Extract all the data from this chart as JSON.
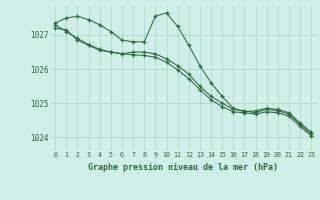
{
  "title": "Graphe pression niveau de la mer (hPa)",
  "background_color": "#cff0e8",
  "plot_bg_color": "#cff0e8",
  "grid_color": "#aad4c8",
  "line_color": "#2d6b3c",
  "xlim": [
    -0.5,
    23.5
  ],
  "ylim": [
    1023.6,
    1027.85
  ],
  "yticks": [
    1024,
    1025,
    1026,
    1027
  ],
  "xticks": [
    0,
    1,
    2,
    3,
    4,
    5,
    6,
    7,
    8,
    9,
    10,
    11,
    12,
    13,
    14,
    15,
    16,
    17,
    18,
    19,
    20,
    21,
    22,
    23
  ],
  "series1_x": [
    0,
    1,
    2,
    3,
    4,
    5,
    6,
    7,
    8,
    9,
    10,
    11,
    12,
    13,
    14,
    15,
    16,
    17,
    18,
    19,
    20,
    21,
    22,
    23
  ],
  "series1_y": [
    1027.35,
    1027.5,
    1027.55,
    1027.45,
    1027.3,
    1027.1,
    1026.85,
    1026.8,
    1026.8,
    1027.55,
    1027.65,
    1027.25,
    1026.7,
    1026.1,
    1025.6,
    1025.2,
    1024.85,
    1024.75,
    1024.78,
    1024.85,
    1024.82,
    1024.72,
    1024.42,
    1024.15
  ],
  "series2_x": [
    0,
    1,
    2,
    3,
    4,
    5,
    6,
    7,
    8,
    9,
    10,
    11,
    12,
    13,
    14,
    15,
    16,
    17,
    18,
    19,
    20,
    21,
    22,
    23
  ],
  "series2_y": [
    1027.2,
    1027.15,
    1026.85,
    1026.7,
    1026.55,
    1026.5,
    1026.45,
    1026.5,
    1026.5,
    1026.45,
    1026.3,
    1026.1,
    1025.85,
    1025.5,
    1025.2,
    1025.0,
    1024.82,
    1024.78,
    1024.72,
    1024.82,
    1024.78,
    1024.68,
    1024.38,
    1024.1
  ],
  "series3_x": [
    0,
    1,
    2,
    3,
    4,
    5,
    6,
    7,
    8,
    9,
    10,
    11,
    12,
    13,
    14,
    15,
    16,
    17,
    18,
    19,
    20,
    21,
    22,
    23
  ],
  "series3_y": [
    1027.3,
    1027.1,
    1026.9,
    1026.72,
    1026.58,
    1026.5,
    1026.45,
    1026.42,
    1026.4,
    1026.35,
    1026.2,
    1025.98,
    1025.72,
    1025.4,
    1025.1,
    1024.9,
    1024.75,
    1024.72,
    1024.68,
    1024.75,
    1024.72,
    1024.62,
    1024.32,
    1024.05
  ]
}
